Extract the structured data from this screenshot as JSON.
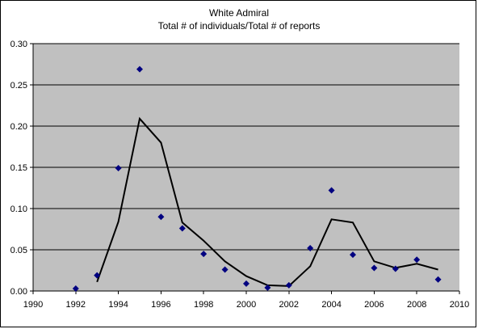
{
  "chart_data": {
    "type": "scatter",
    "title": "White Admiral",
    "subtitle": "Total # of individuals/Total # of reports",
    "xlabel": "",
    "ylabel": "",
    "xlim": [
      1990,
      2010
    ],
    "ylim": [
      0,
      0.3
    ],
    "x_ticks": [
      "1990",
      "1992",
      "1994",
      "1996",
      "1998",
      "2000",
      "2002",
      "2004",
      "2006",
      "2008",
      "2010"
    ],
    "y_ticks": [
      "0.00",
      "0.05",
      "0.10",
      "0.15",
      "0.20",
      "0.25",
      "0.30"
    ],
    "grid": "horizontal",
    "legend": "none",
    "colors": {
      "plot_background": "#c0c0c0",
      "points": "#000080",
      "trend_line": "#000000",
      "gridlines": "#000000"
    },
    "series": [
      {
        "marker": "diamond",
        "x": [
          1992,
          1993,
          1994,
          1995,
          1996,
          1997,
          1998,
          1999,
          2000,
          2001,
          2002,
          2003,
          2004,
          2005,
          2006,
          2007,
          2008,
          2009
        ],
        "y": [
          0.003,
          0.019,
          0.149,
          0.269,
          0.09,
          0.076,
          0.045,
          0.026,
          0.009,
          0.004,
          0.007,
          0.052,
          0.122,
          0.044,
          0.028,
          0.027,
          0.038,
          0.014
        ]
      }
    ],
    "trendline": {
      "type": "moving average",
      "x": [
        1993,
        1994,
        1995,
        1996,
        1997,
        1998,
        1999,
        2000,
        2001,
        2002,
        2003,
        2004,
        2005,
        2006,
        2007,
        2008,
        2009
      ],
      "y": [
        0.011,
        0.084,
        0.209,
        0.18,
        0.083,
        0.061,
        0.036,
        0.018,
        0.007,
        0.006,
        0.03,
        0.087,
        0.083,
        0.036,
        0.028,
        0.033,
        0.026
      ]
    }
  }
}
